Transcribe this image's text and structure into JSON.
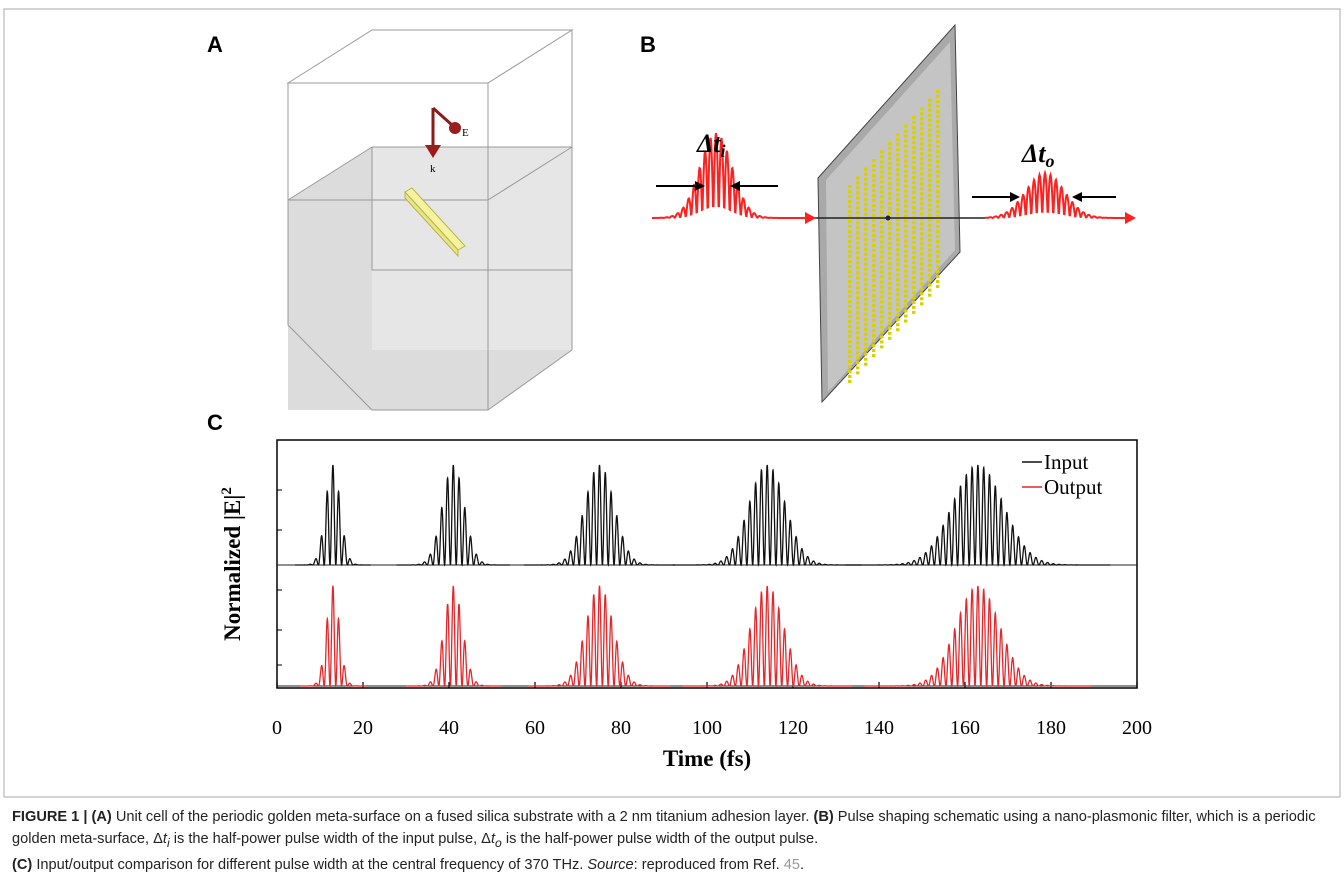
{
  "panels": {
    "A": {
      "label": "A",
      "field_label": "E",
      "wave_label": "k"
    },
    "B": {
      "label": "B",
      "input_label": "Δt",
      "input_sub": "i",
      "output_label": "Δt",
      "output_sub": "o"
    },
    "C": {
      "label": "C"
    }
  },
  "chart_data": {
    "type": "pulses",
    "xlabel": "Time (fs)",
    "ylabel": "Normalized |E|",
    "ylabel_sup": "2",
    "xlim": [
      0,
      200
    ],
    "xticks": [
      0,
      20,
      40,
      60,
      80,
      100,
      120,
      140,
      160,
      180,
      200
    ],
    "central_frequency_thz": 370,
    "legend": "upper right",
    "series": [
      {
        "name": "Input",
        "color": "#111111",
        "centers": [
          13,
          41,
          75,
          114,
          163
        ],
        "widths": [
          4,
          6,
          8,
          10,
          14
        ]
      },
      {
        "name": "Output",
        "color": "#e8262a",
        "centers": [
          13,
          41,
          75,
          114,
          163
        ],
        "widths": [
          3.5,
          5,
          7.5,
          9,
          12
        ]
      }
    ]
  },
  "caption": {
    "figure": "FIGURE 1 | ",
    "a_tag": "(A)",
    "a_text": " Unit cell of the periodic golden meta-surface on a fused silica substrate with a 2 nm titanium adhesion layer. ",
    "b_tag": "(B)",
    "b_text1": " Pulse shaping schematic using a nano-plasmonic filter, which is a periodic golden meta-surface, Δ",
    "b_t1": "t",
    "b_sub1": "i",
    "b_text2": " is the half-power pulse width of the input pulse, Δ",
    "b_t2": "t",
    "b_sub2": "o",
    "b_text3": " is the half-power pulse width of the output pulse.",
    "c_tag": "(C)",
    "c_text": " Input/output comparison for different pulse width at the central frequency of 370 THz. ",
    "source": "Source",
    "source_text": ": reproduced from Ref. ",
    "ref": "45",
    "end": "."
  }
}
